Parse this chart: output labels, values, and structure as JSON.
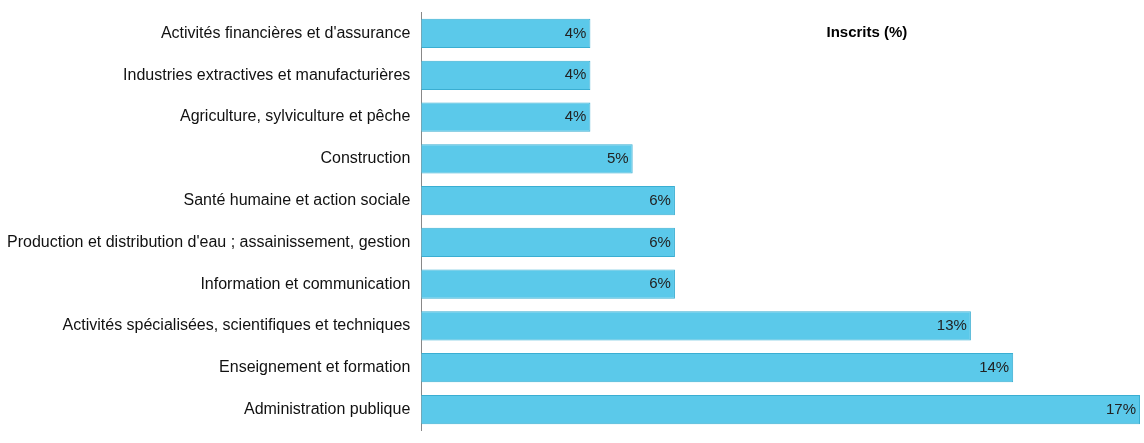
{
  "chart_data": {
    "type": "bar",
    "orientation": "horizontal",
    "title": "Inscrits (%)",
    "categories": [
      "Activités financières et d'assurance",
      "Industries extractives et manufacturières",
      "Agriculture, sylviculture et pêche",
      "Construction",
      "Santé humaine et action sociale",
      "Production et distribution d'eau ; assainissement, gestion",
      "Information et communication",
      "Activités spécialisées, scientifiques et techniques",
      "Enseignement et formation",
      "Administration publique"
    ],
    "values": [
      4,
      4,
      4,
      5,
      6,
      6,
      6,
      13,
      14,
      17
    ],
    "value_labels": [
      "4%",
      "4%",
      "4%",
      "5%",
      "6%",
      "6%",
      "6%",
      "13%",
      "14%",
      "17%"
    ],
    "color": "#5bc9ea",
    "tick_labels": "y"
  }
}
